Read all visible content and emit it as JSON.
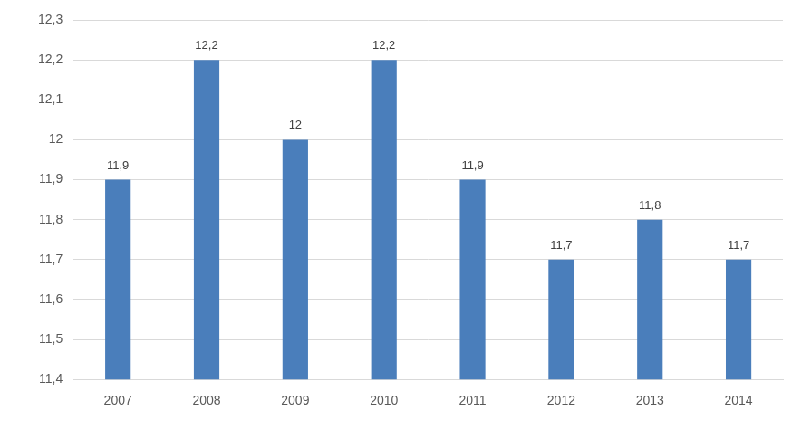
{
  "chart_data": {
    "type": "bar",
    "categories": [
      "2007",
      "2008",
      "2009",
      "2010",
      "2011",
      "2012",
      "2013",
      "2014"
    ],
    "values": [
      11.9,
      12.2,
      12,
      12.2,
      11.9,
      11.7,
      11.8,
      11.7
    ],
    "value_labels": [
      "11,9",
      "12,2",
      "12",
      "12,2",
      "11,9",
      "11,7",
      "11,8",
      "11,7"
    ],
    "color": "#4a7ebb",
    "ylim": [
      11.4,
      12.3
    ],
    "yticks": [
      {
        "value": 11.4,
        "label": "11,4"
      },
      {
        "value": 11.5,
        "label": "11,5"
      },
      {
        "value": 11.6,
        "label": "11,6"
      },
      {
        "value": 11.7,
        "label": "11,7"
      },
      {
        "value": 11.8,
        "label": "11,8"
      },
      {
        "value": 11.9,
        "label": "11,9"
      },
      12,
      {
        "value": 12.1,
        "label": "12,1"
      },
      {
        "value": 12.2,
        "label": "12,2"
      },
      {
        "value": 12.3,
        "label": "12,3"
      }
    ],
    "grid": true,
    "data_labels": true
  }
}
